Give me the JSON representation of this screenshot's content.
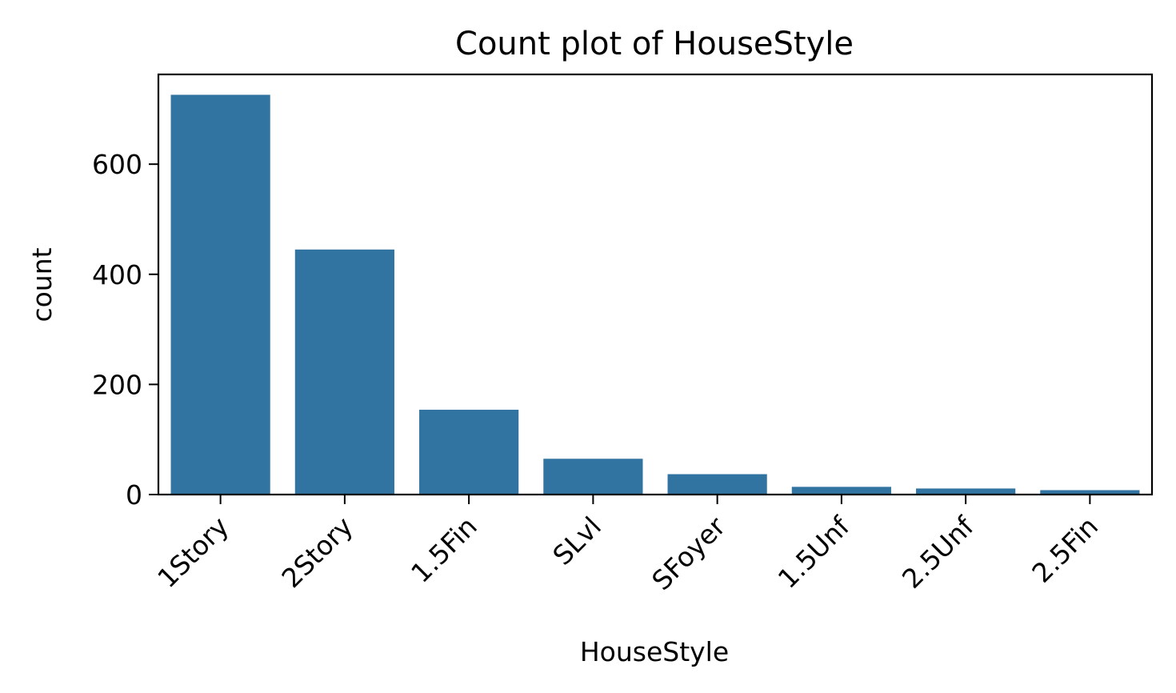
{
  "chart_data": {
    "type": "bar",
    "title": "Count plot of HouseStyle",
    "xlabel": "HouseStyle",
    "ylabel": "count",
    "categories": [
      "1Story",
      "2Story",
      "1.5Fin",
      "SLvl",
      "SFoyer",
      "1.5Unf",
      "2.5Unf",
      "2.5Fin"
    ],
    "values": [
      726,
      445,
      154,
      65,
      37,
      14,
      11,
      8
    ],
    "ylim": [
      0,
      763
    ],
    "yticks": [
      0,
      200,
      400,
      600
    ],
    "grid": false,
    "bar_color": "#3274a1"
  }
}
